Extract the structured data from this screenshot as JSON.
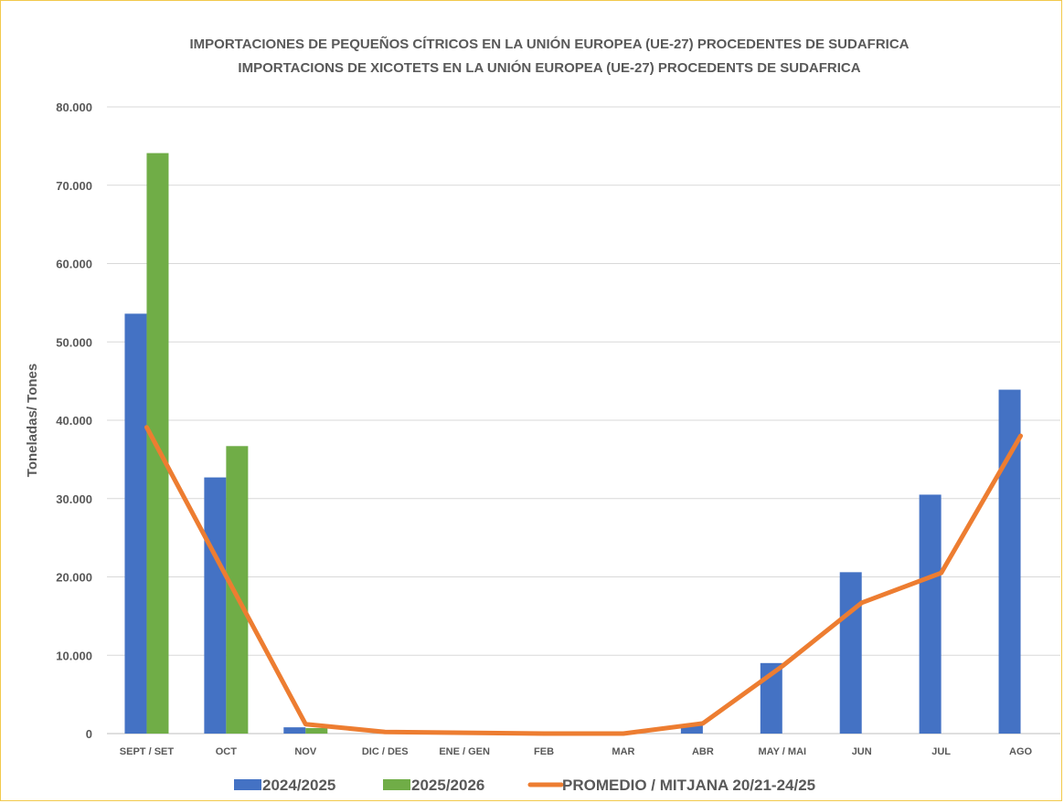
{
  "chart_data": {
    "type": "bar",
    "title": "IMPORTACIONES DE PEQUEÑOS CÍTRICOS EN LA UNIÓN EUROPEA (UE-27) PROCEDENTES DE SUDAFRICA",
    "subtitle": "IMPORTACIONS DE XICOTETS EN LA UNIÓN EUROPEA (UE-27) PROCEDENTS DE SUDAFRICA",
    "xlabel": "",
    "ylabel": "Toneladas/ Tones",
    "ylim": [
      0,
      80000
    ],
    "yticks": [
      {
        "value": 0,
        "label": "0"
      },
      {
        "value": 10000,
        "label": "10.000"
      },
      {
        "value": 20000,
        "label": "20.000"
      },
      {
        "value": 30000,
        "label": "30.000"
      },
      {
        "value": 40000,
        "label": "40.000"
      },
      {
        "value": 50000,
        "label": "50.000"
      },
      {
        "value": 60000,
        "label": "60.000"
      },
      {
        "value": 70000,
        "label": "70.000"
      },
      {
        "value": 80000,
        "label": "80.000"
      }
    ],
    "grid": true,
    "legend_position": "bottom",
    "categories": [
      "SEPT / SET",
      "OCT",
      "NOV",
      "DIC / DES",
      "ENE / GEN",
      "FEB",
      "MAR",
      "ABR",
      "MAY / MAI",
      "JUN",
      "JUL",
      "AGO"
    ],
    "series": [
      {
        "name": "2024/2025",
        "type": "bar",
        "color": "#4472c4",
        "values": [
          53600,
          32700,
          800,
          0,
          0,
          0,
          0,
          1100,
          9000,
          20600,
          30500,
          43900
        ]
      },
      {
        "name": "2025/2026",
        "type": "bar",
        "color": "#70ad47",
        "values": [
          74100,
          36700,
          700,
          null,
          null,
          null,
          null,
          null,
          null,
          null,
          null,
          null
        ]
      },
      {
        "name": "PROMEDIO / MITJANA 20/21-24/25",
        "type": "line",
        "color": "#ed7d31",
        "values": [
          39100,
          20100,
          1200,
          200,
          100,
          0,
          0,
          1300,
          8600,
          16700,
          20500,
          38000
        ]
      }
    ]
  }
}
